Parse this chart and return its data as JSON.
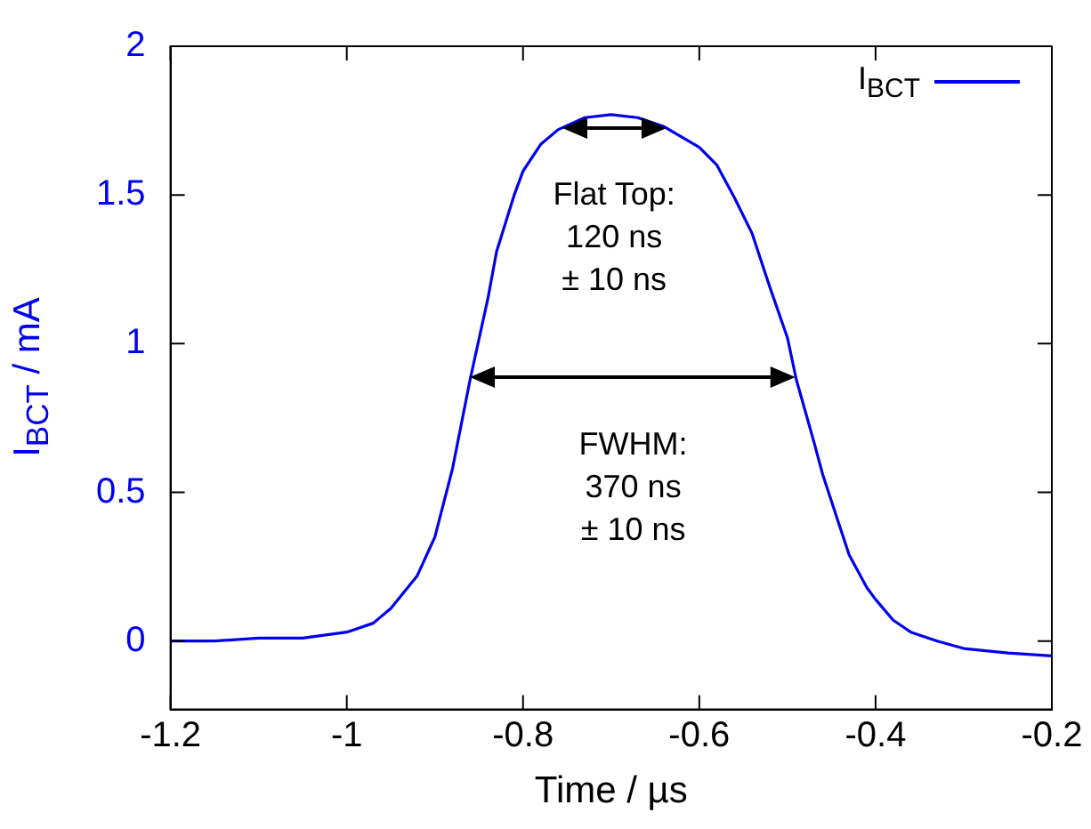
{
  "chart_data": {
    "type": "line",
    "xlabel": "Time / µs",
    "ylabel": "I$_{BCT}$ / mA",
    "legend": "top right",
    "grid": false,
    "marker": "none",
    "line_style": "solid",
    "x": [
      -1.2,
      -1.15,
      -1.1,
      -1.05,
      -1.0,
      -0.97,
      -0.95,
      -0.92,
      -0.9,
      -0.88,
      -0.86,
      -0.84,
      -0.83,
      -0.81,
      -0.8,
      -0.78,
      -0.76,
      -0.73,
      -0.7,
      -0.67,
      -0.64,
      -0.6,
      -0.58,
      -0.56,
      -0.54,
      -0.52,
      -0.5,
      -0.49,
      -0.47,
      -0.46,
      -0.44,
      -0.43,
      -0.41,
      -0.4,
      -0.38,
      -0.36,
      -0.33,
      -0.3,
      -0.25,
      -0.2
    ],
    "series": [
      {
        "name": "I$_{BCT}$",
        "color": "#0000ee",
        "values": [
          0,
          0,
          0.01,
          0.01,
          0.03,
          0.06,
          0.11,
          0.22,
          0.35,
          0.58,
          0.88,
          1.15,
          1.31,
          1.5,
          1.58,
          1.67,
          1.72,
          1.76,
          1.77,
          1.76,
          1.73,
          1.66,
          1.6,
          1.49,
          1.37,
          1.19,
          1.02,
          0.88,
          0.67,
          0.56,
          0.38,
          0.29,
          0.18,
          0.14,
          0.07,
          0.03,
          0.0,
          -0.025,
          -0.04,
          -0.05
        ]
      }
    ],
    "xlim": [
      -1.2,
      -0.2
    ],
    "xticks": [
      -1.2,
      -1,
      -0.8,
      -0.6,
      -0.4,
      -0.2
    ],
    "ylim": [
      -0.23,
      2
    ],
    "yticks": [
      0,
      0.5,
      1,
      1.5,
      2
    ],
    "annotations": [
      "Flat Top:\n120 ns\n± 10 ns",
      "FWHM:\n370 ns\n± 10 ns"
    ]
  }
}
